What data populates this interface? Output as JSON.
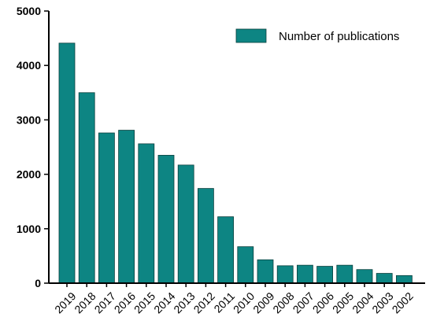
{
  "chart_data": {
    "type": "bar",
    "title": "",
    "xlabel": "",
    "ylabel": "",
    "categories": [
      "2019",
      "2018",
      "2017",
      "2016",
      "2015",
      "2014",
      "2013",
      "2012",
      "2011",
      "2010",
      "2009",
      "2008",
      "2007",
      "2006",
      "2005",
      "2004",
      "2003",
      "2002"
    ],
    "series": [
      {
        "name": "Number of publications",
        "values": [
          4410,
          3500,
          2760,
          2810,
          2560,
          2350,
          2170,
          1740,
          1220,
          670,
          430,
          320,
          330,
          310,
          330,
          250,
          180,
          140
        ],
        "color": "#0d8583"
      }
    ],
    "yticks": [
      "0",
      "1000",
      "2000",
      "3000",
      "4000",
      "5000"
    ],
    "ylim": [
      0,
      5000
    ],
    "grid": false,
    "legend_position": "top-right"
  }
}
